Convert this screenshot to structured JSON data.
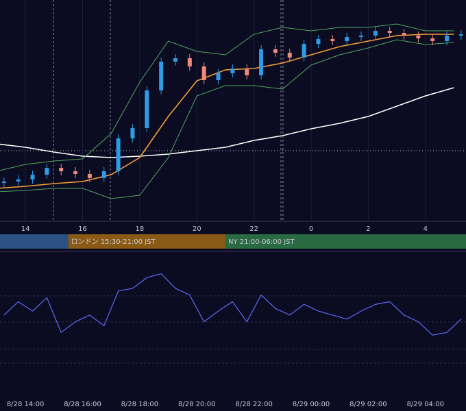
{
  "chart_data": [
    {
      "type": "candlestick",
      "xlim": [
        13.11,
        29.42
      ],
      "ylim": [
        0,
        322
      ],
      "xticks": [
        14,
        16,
        18,
        20,
        22,
        {
          "value": 24,
          "label": "0"
        },
        {
          "value": 26,
          "label": "2"
        },
        {
          "value": 28,
          "label": "4"
        }
      ],
      "grid": true,
      "up_color": "#2f9be8",
      "down_color": "#ee8a78",
      "candles": {
        "x": [
          13.25,
          13.75,
          14.25,
          14.75,
          15.25,
          15.75,
          16.25,
          16.75,
          17.25,
          17.75,
          18.25,
          18.75,
          19.25,
          19.75,
          20.25,
          20.75,
          21.25,
          21.75,
          22.25,
          22.75,
          23.25,
          23.75,
          24.25,
          24.75,
          25.25,
          25.75,
          26.25,
          26.75,
          27.25,
          27.75,
          28.25,
          28.75,
          29.25
        ],
        "open": [
          55,
          57,
          60,
          67,
          77,
          72,
          68,
          62,
          72,
          120,
          135,
          190,
          232,
          237,
          225,
          205,
          215,
          222,
          212,
          250,
          245,
          238,
          258,
          265,
          262,
          268,
          270,
          277,
          274,
          270,
          266,
          262,
          270
        ],
        "high": [
          63,
          66,
          73,
          83,
          83,
          78,
          74,
          78,
          126,
          141,
          196,
          238,
          243,
          243,
          231,
          221,
          228,
          228,
          256,
          256,
          251,
          264,
          271,
          271,
          274,
          276,
          283,
          283,
          280,
          276,
          272,
          276,
          278
        ],
        "low": [
          49,
          51,
          54,
          61,
          66,
          62,
          56,
          56,
          66,
          114,
          129,
          184,
          226,
          219,
          199,
          199,
          209,
          206,
          206,
          239,
          232,
          232,
          252,
          256,
          256,
          262,
          264,
          268,
          264,
          260,
          256,
          256,
          264
        ],
        "close": [
          57,
          60,
          67,
          77,
          72,
          68,
          62,
          72,
          120,
          135,
          190,
          232,
          237,
          225,
          205,
          215,
          222,
          212,
          250,
          245,
          238,
          258,
          265,
          262,
          268,
          270,
          277,
          274,
          270,
          266,
          262,
          270,
          272
        ]
      },
      "lines": [
        {
          "color": "#ffffff",
          "x": [
            13,
            14,
            15,
            16,
            17,
            18,
            19,
            20,
            21,
            22,
            23,
            24,
            25,
            26,
            27,
            28,
            29
          ],
          "values": [
            112,
            107,
            100,
            94,
            92,
            94,
            97,
            102,
            107,
            117,
            124,
            134,
            142,
            152,
            167,
            182,
            194
          ]
        },
        {
          "color": "#f5a03a",
          "x": [
            13,
            14,
            15,
            16,
            17,
            18,
            19,
            20,
            21,
            22,
            23,
            24,
            25,
            26,
            27,
            28,
            29
          ],
          "values": [
            47,
            50,
            54,
            57,
            67,
            92,
            152,
            204,
            220,
            222,
            230,
            242,
            254,
            262,
            270,
            272,
            272
          ]
        },
        {
          "color": "#4fa862",
          "x": [
            13,
            14,
            15,
            16,
            17,
            18,
            19,
            20,
            21,
            22,
            23,
            24,
            25,
            26,
            27,
            28,
            29
          ],
          "values": [
            72,
            82,
            87,
            90,
            127,
            202,
            262,
            247,
            242,
            272,
            282,
            277,
            282,
            282,
            287,
            277,
            277
          ]
        },
        {
          "color": "#4fa862",
          "x": [
            13,
            14,
            15,
            16,
            17,
            18,
            19,
            20,
            21,
            22,
            23,
            24,
            25,
            26,
            27,
            28,
            29
          ],
          "values": [
            42,
            44,
            47,
            47,
            32,
            37,
            92,
            182,
            197,
            197,
            192,
            227,
            242,
            252,
            264,
            257,
            260
          ]
        }
      ],
      "sessions": [
        {
          "start": 13.11,
          "end": 15.5,
          "color": "#2b5282"
        },
        {
          "label": "ロンドン 15:30-21:00 JST",
          "start": 15.5,
          "end": 21,
          "color": "#8a5a14"
        },
        {
          "label": "NY 21:00-06:00 JST",
          "start": 21,
          "end": 29.42,
          "color": "#2a6a42"
        }
      ]
    },
    {
      "type": "line",
      "xlim": [
        13.11,
        29.42
      ],
      "ylim": [
        0,
        100
      ],
      "color": "#5d6cf2",
      "xticks": [
        {
          "value": 14,
          "label": "8/28 14:00"
        },
        {
          "value": 16,
          "label": "8/28 16:00"
        },
        {
          "value": 18,
          "label": "8/28 18:00"
        },
        {
          "value": 20,
          "label": "8/28 20:00"
        },
        {
          "value": 22,
          "label": "8/28 22:00"
        },
        {
          "value": 24,
          "label": "8/29 00:00"
        },
        {
          "value": 26,
          "label": "8/29 02:00"
        },
        {
          "value": 28,
          "label": "8/29 04:00"
        }
      ],
      "x": [
        13.25,
        13.75,
        14.25,
        14.75,
        15.25,
        15.75,
        16.25,
        16.75,
        17.25,
        17.75,
        18.25,
        18.75,
        19.25,
        19.75,
        20.25,
        20.75,
        21.25,
        21.75,
        22.25,
        22.75,
        23.25,
        23.75,
        24.25,
        24.75,
        25.25,
        25.75,
        26.25,
        26.75,
        27.25,
        27.75,
        28.25,
        28.75,
        29.25
      ],
      "values": [
        59,
        69,
        62,
        72,
        46,
        54,
        59,
        51,
        77,
        79,
        87,
        90,
        79,
        74,
        54,
        62,
        69,
        54,
        74,
        64,
        59,
        67,
        62,
        59,
        56,
        62,
        67,
        69,
        59,
        54,
        44,
        46,
        56
      ]
    }
  ]
}
